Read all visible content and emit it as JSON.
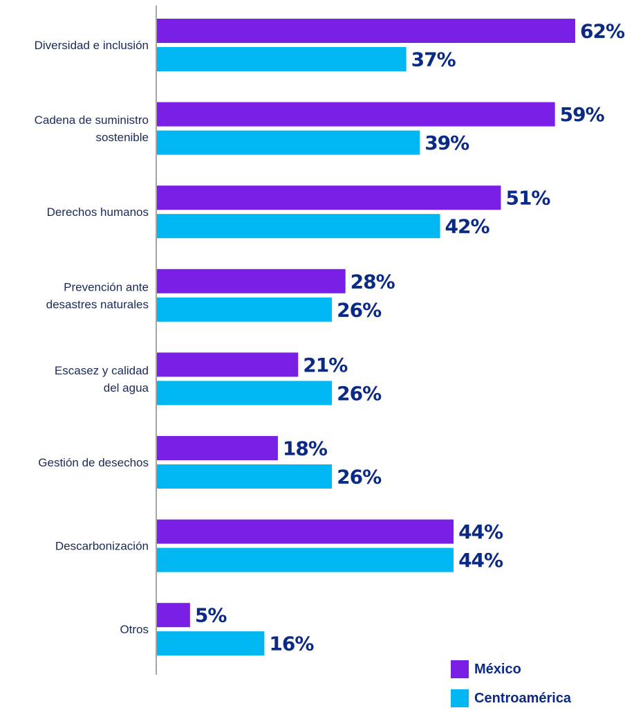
{
  "chart_data": {
    "type": "bar",
    "orientation": "horizontal",
    "title": "",
    "xlabel": "",
    "ylabel": "",
    "xlim": [
      0,
      62
    ],
    "grid": false,
    "legend_position": "bottom-right",
    "categories": [
      "Diversidad e inclusión",
      "Cadena de suministro sostenible",
      "Derechos humanos",
      "Prevención ante desastres naturales",
      "Escasez y calidad del agua",
      "Gestión de desechos",
      "Descarbonización",
      "Otros"
    ],
    "category_lines": [
      [
        "Diversidad e inclusión"
      ],
      [
        "Cadena de suministro",
        "sostenible"
      ],
      [
        "Derechos humanos"
      ],
      [
        "Prevención ante",
        "desastres naturales"
      ],
      [
        "Escasez y calidad",
        "del agua"
      ],
      [
        "Gestión de desechos"
      ],
      [
        "Descarbonización"
      ],
      [
        "Otros"
      ]
    ],
    "series": [
      {
        "name": "México",
        "color": "#7a1fe6",
        "values": [
          62,
          59,
          51,
          28,
          21,
          18,
          44,
          5
        ],
        "labels": [
          "62%",
          "59%",
          "51%",
          "28%",
          "21%",
          "18%",
          "44%",
          "5%"
        ]
      },
      {
        "name": "Centroamérica",
        "color": "#00b7f1",
        "values": [
          37,
          39,
          42,
          26,
          26,
          26,
          44,
          16
        ],
        "labels": [
          "37%",
          "39%",
          "42%",
          "26%",
          "26%",
          "26%",
          "44%",
          "16%"
        ]
      }
    ],
    "axis_color": "#a6a6a6",
    "label_color": "#0b2a86"
  }
}
